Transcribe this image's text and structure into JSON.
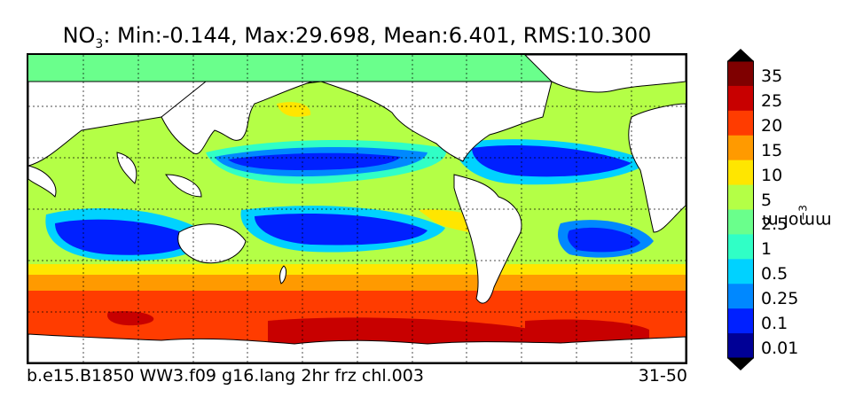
{
  "title": {
    "prefix": "NO",
    "subscript": "3",
    "stats": ": Min:-0.144, Max:29.698, Mean:6.401, RMS:10.300"
  },
  "footer": {
    "run_name": "b.e15.B1850 WW3.f09 g16.lang 2hr frz chl.003",
    "years": "31-50"
  },
  "colorbar": {
    "units_main": "mmol m",
    "units_exp": "−3",
    "levels": [
      "35",
      "25",
      "20",
      "15",
      "10",
      "5",
      "2.5",
      "1",
      "0.5",
      "0.25",
      "0.1",
      "0.01"
    ],
    "colors_top_to_bottom": [
      "#7f0000",
      "#c80000",
      "#ff3c00",
      "#ff9a00",
      "#ffe600",
      "#b4ff46",
      "#6aff8c",
      "#30ffc6",
      "#00d2ff",
      "#0088ff",
      "#0020ff",
      "#000096"
    ],
    "extend_top": "#000000",
    "extend_bottom": "#000000"
  },
  "map": {
    "projection": "global lat-lon",
    "gridlines": "dotted",
    "land_color": "#ffffff",
    "coast_color": "#000000"
  }
}
